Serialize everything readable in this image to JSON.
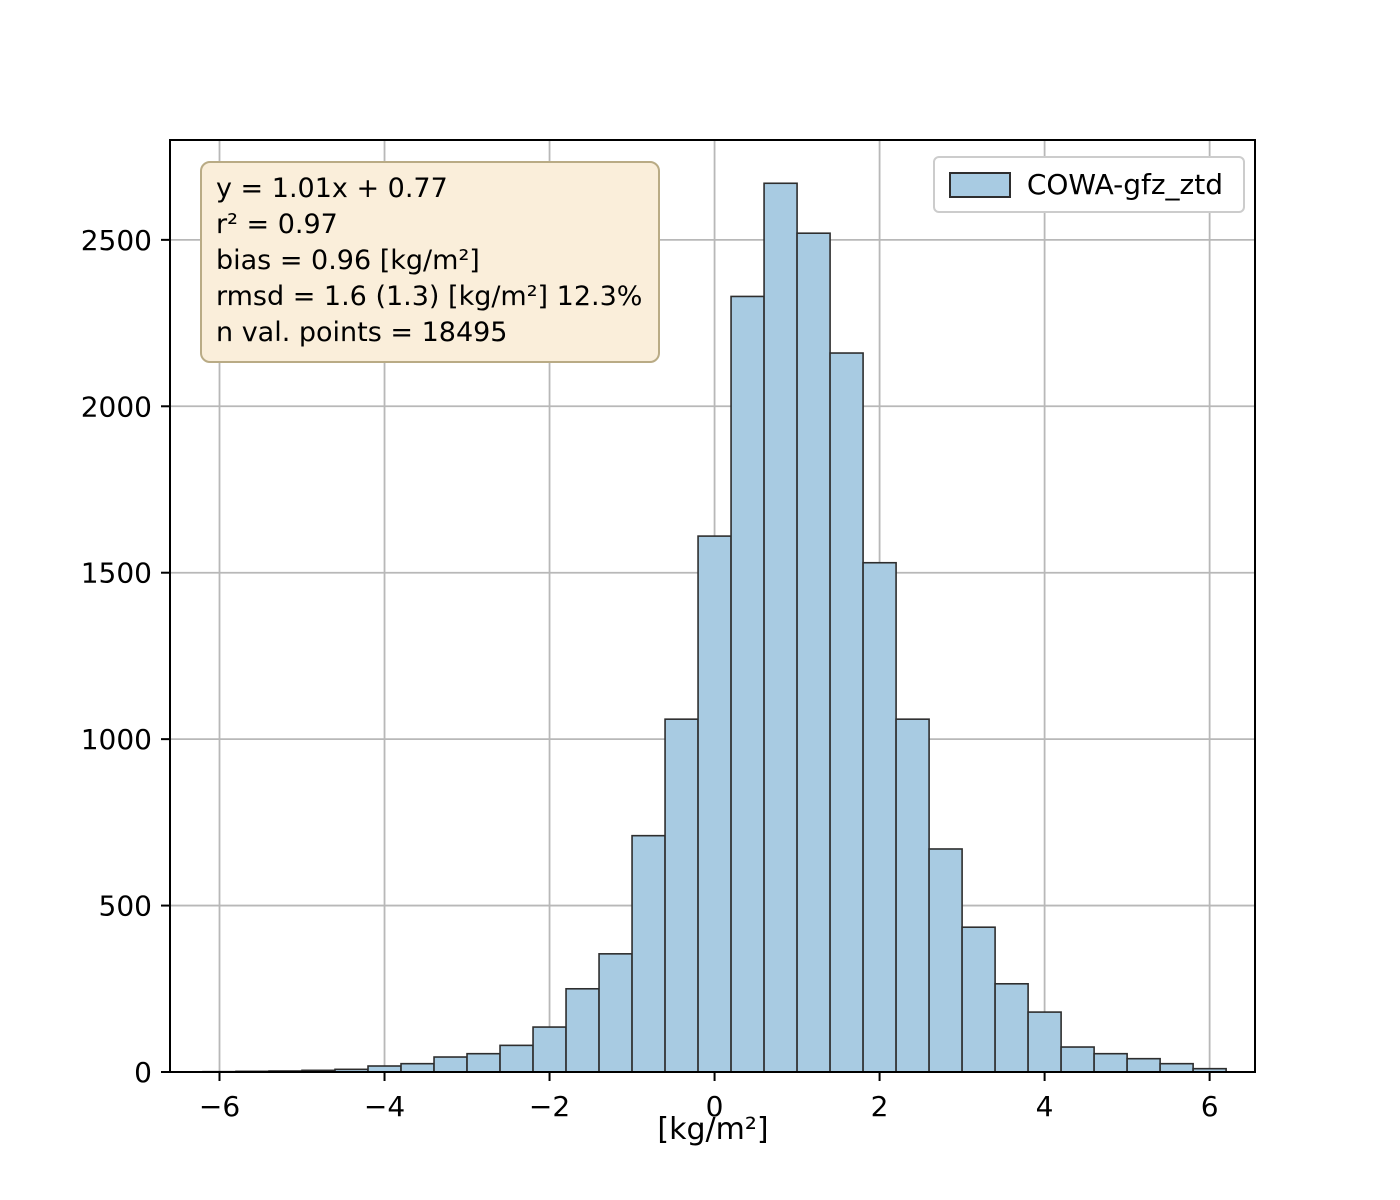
{
  "colors": {
    "background": "#ffffff",
    "bar_fill": "#a8cbe2",
    "bar_edge": "#2e2e2e",
    "grid": "#b8b8b8",
    "spine": "#000000",
    "tick": "#000000",
    "stats_box_face": "#faeeda",
    "stats_box_edge": "#b9ab85",
    "legend_border": "#cccccc"
  },
  "chart_data": {
    "type": "bar",
    "subtype": "histogram",
    "title": "",
    "xlabel": "[kg/m²]",
    "ylabel": "",
    "legend_label": "COWA-gfz_ztd",
    "legend_position": "upper right",
    "grid": true,
    "xlim": [
      -6.6,
      6.55
    ],
    "ylim": [
      0,
      2800
    ],
    "bin_edges": [
      -6.2,
      -5.8,
      -5.4,
      -5.0,
      -4.6,
      -4.2,
      -3.8,
      -3.4,
      -3.0,
      -2.6,
      -2.2,
      -1.8,
      -1.4,
      -1.0,
      -0.6,
      -0.2,
      0.2,
      0.6,
      1.0,
      1.4,
      1.8,
      2.2,
      2.6,
      3.0,
      3.4,
      3.8,
      4.2,
      4.6,
      5.0,
      5.4,
      5.8,
      6.2
    ],
    "counts": [
      1,
      2,
      3,
      5,
      8,
      18,
      25,
      45,
      55,
      80,
      135,
      250,
      355,
      710,
      1060,
      1610,
      2330,
      2670,
      2520,
      2160,
      1530,
      1060,
      670,
      435,
      265,
      180,
      75,
      55,
      40,
      25,
      10
    ],
    "xticks": {
      "values": [
        -6,
        -4,
        -2,
        0,
        2,
        4,
        6
      ],
      "labels": [
        "−6",
        "−4",
        "−2",
        "0",
        "2",
        "4",
        "6"
      ]
    },
    "yticks": {
      "values": [
        0,
        500,
        1000,
        1500,
        2000,
        2500
      ],
      "labels": [
        "0",
        "500",
        "1000",
        "1500",
        "2000",
        "2500"
      ]
    },
    "annotations": [
      "y = 1.01x + 0.77",
      "r² = 0.97",
      "bias = 0.96 [kg/m²]",
      "rmsd = 1.6 (1.3) [kg/m²] 12.3%",
      "n val. points = 18495"
    ]
  }
}
